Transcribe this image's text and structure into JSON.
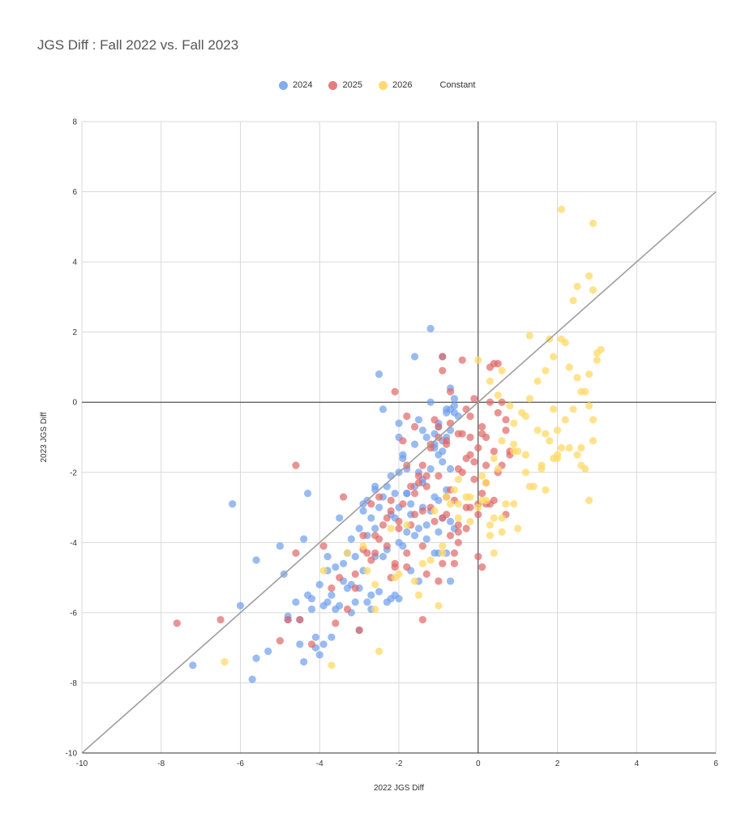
{
  "chart_data": {
    "type": "scatter",
    "title": "JGS Diff : Fall 2022 vs. Fall 2023",
    "xlabel": "2022 JGS Diff",
    "ylabel": "2023 JGS Diff",
    "xlim": [
      -10,
      6
    ],
    "ylim": [
      -10,
      8
    ],
    "xticks": [
      "-10",
      "-8",
      "-6",
      "-4",
      "-2",
      "0",
      "2",
      "4",
      "6"
    ],
    "yticks": [
      "-10",
      "-8",
      "-6",
      "-4",
      "-2",
      "0",
      "2",
      "4",
      "6",
      "8"
    ],
    "grid": true,
    "legend_position": "top",
    "series": [
      {
        "name": "2024",
        "color": "#6d9eeb",
        "x": [
          -7.2,
          -6.2,
          -6.0,
          -5.7,
          -5.6,
          -5.6,
          -5.3,
          -5.0,
          -4.9,
          -4.8,
          -4.6,
          -4.5,
          -4.5,
          -4.4,
          -4.3,
          -4.2,
          -4.2,
          -4.1,
          -4.0,
          -3.9,
          -3.8,
          -3.8,
          -3.7,
          -3.6,
          -3.5,
          -3.4,
          -3.3,
          -3.2,
          -3.1,
          -3.0,
          -2.9,
          -2.8,
          -2.7,
          -2.6,
          -2.6,
          -2.5,
          -2.4,
          -2.3,
          -2.2,
          -2.1,
          -2.0,
          -2.0,
          -1.9,
          -1.8,
          -1.8,
          -1.7,
          -1.6,
          -1.5,
          -1.4,
          -1.3,
          -1.2,
          -1.1,
          -1.0,
          -0.9,
          -0.8,
          -0.7,
          -0.6,
          -1.2,
          -0.9,
          -0.7,
          -2.5,
          -1.6,
          -1.0,
          -0.8,
          -0.6,
          -1.4,
          -1.1,
          -0.9,
          -0.7,
          -0.5,
          -2.0,
          -1.7,
          -1.3,
          -1.0,
          -0.8,
          -3.0,
          -2.8,
          -2.3,
          -1.9,
          -1.5,
          -1.2,
          -1.0,
          -0.7,
          -3.2,
          -2.6,
          -2.1,
          -1.8,
          -1.4,
          -1.1,
          -0.9,
          -0.6,
          -3.8,
          -3.4,
          -2.9,
          -2.4,
          -2.0,
          -1.6,
          -1.3,
          -1.0,
          -3.5,
          -3.0,
          -2.7,
          -2.2,
          -1.7,
          -4.0,
          -3.6,
          -3.1,
          -2.5,
          -2.0,
          -1.5,
          -1.1,
          -0.7,
          -4.3,
          -3.9,
          -3.3,
          -2.8,
          -2.3,
          -4.8,
          -4.4,
          -4.1,
          -3.7,
          -3.2,
          -2.7,
          -2.1,
          -2.4,
          -2.0,
          -1.9,
          -1.6,
          -1.5,
          -1.2,
          -1.0,
          -0.8,
          -0.6,
          -2.9,
          -2.6,
          -2.2,
          -1.8,
          -1.4,
          -1.1,
          -0.9,
          -0.8,
          -0.7
        ],
        "y": [
          -7.5,
          -2.9,
          -5.8,
          -7.9,
          -7.3,
          -4.5,
          -7.1,
          -4.1,
          -4.9,
          -6.1,
          -5.7,
          -6.9,
          -6.2,
          -3.9,
          -2.6,
          -5.9,
          -5.6,
          -6.7,
          -7.2,
          -6.9,
          -5.7,
          -4.8,
          -5.5,
          -4.7,
          -3.3,
          -5.1,
          -4.3,
          -5.2,
          -4.4,
          -5.3,
          -3.1,
          -2.8,
          -3.3,
          -2.4,
          -4.4,
          -3.0,
          -2.7,
          -2.4,
          -3.2,
          -2.6,
          -2.0,
          -1.0,
          -1.5,
          -1.9,
          -2.6,
          -2.9,
          -2.4,
          -2.0,
          -2.3,
          -1.0,
          -1.9,
          -0.9,
          -1.5,
          -1.1,
          -2.5,
          -0.8,
          0.1,
          2.1,
          1.3,
          0.4,
          0.8,
          1.3,
          -0.6,
          -0.3,
          -0.1,
          -0.8,
          -1.2,
          -1.7,
          -1.9,
          -0.4,
          -3.0,
          -3.2,
          -3.5,
          -3.7,
          -4.3,
          -3.6,
          -3.8,
          -4.2,
          -4.1,
          -3.6,
          -3.1,
          -2.8,
          -3.4,
          -3.9,
          -3.6,
          -3.3,
          -3.7,
          -3.0,
          -2.7,
          -3.3,
          -3.6,
          -4.4,
          -4.6,
          -4.8,
          -4.4,
          -4.0,
          -3.8,
          -3.9,
          -4.3,
          -5.8,
          -6.5,
          -5.5,
          -5.6,
          -4.8,
          -5.2,
          -5.9,
          -5.7,
          -5.4,
          -5.6,
          -5.1,
          -4.3,
          -5.1,
          -5.5,
          -5.8,
          -5.3,
          -5.7,
          -5.7,
          -6.2,
          -7.4,
          -7.0,
          -6.7,
          -6.0,
          -5.9,
          -5.5,
          -0.2,
          -0.6,
          -1.6,
          -1.2,
          -0.5,
          0.0,
          -0.7,
          -0.2,
          -0.3,
          -2.9,
          -2.5,
          -2.1,
          -2.6,
          -2.2,
          -1.3,
          -1.4,
          -1.0,
          -0.2
        ]
      },
      {
        "name": "2025",
        "color": "#e06666",
        "x": [
          -7.6,
          -6.5,
          -5.0,
          -4.8,
          -4.6,
          -4.6,
          -4.5,
          -4.2,
          -3.9,
          -3.7,
          -3.6,
          -3.4,
          -3.3,
          -3.1,
          -3.0,
          -2.9,
          -2.8,
          -2.7,
          -2.6,
          -2.5,
          -2.4,
          -2.3,
          -2.2,
          -2.1,
          -2.0,
          -1.9,
          -1.8,
          -1.7,
          -1.6,
          -1.5,
          -1.4,
          -1.3,
          -1.2,
          -1.1,
          -1.0,
          -0.9,
          -0.8,
          -0.7,
          -0.6,
          -0.5,
          -0.4,
          -0.3,
          -0.2,
          -0.1,
          0.0,
          0.1,
          0.2,
          0.3,
          0.4,
          0.5,
          0.6,
          0.7,
          0.8,
          -0.9,
          -0.7,
          -0.4,
          -0.2,
          0.1,
          0.3,
          0.5,
          0.7,
          -1.0,
          -0.8,
          -0.5,
          -0.3,
          0.0,
          0.2,
          0.4,
          0.6,
          0.8,
          -1.8,
          -1.5,
          -1.3,
          -1.0,
          -0.7,
          -0.4,
          -0.1,
          0.2,
          0.5,
          -2.2,
          -1.9,
          -1.6,
          -1.2,
          -0.9,
          -0.6,
          -0.3,
          0.0,
          0.3,
          -2.6,
          -2.3,
          -2.0,
          -1.7,
          -1.4,
          -1.1,
          -0.8,
          -0.5,
          -0.2,
          0.1,
          0.4,
          0.7,
          -2.9,
          -2.5,
          -2.1,
          -1.8,
          -1.4,
          -1.0,
          -0.6,
          -0.3,
          0.0,
          -3.5,
          -3.1,
          -2.7,
          -2.2,
          -1.8,
          -1.3,
          -0.9,
          -0.5,
          -0.1,
          0.2,
          -1.4,
          -0.7,
          -0.2,
          0.1,
          -2.1,
          -1.6,
          -1.2,
          -0.8,
          -0.5
        ],
        "y": [
          -6.3,
          -6.2,
          -6.8,
          -6.2,
          -1.8,
          -4.3,
          -6.2,
          -6.9,
          -4.1,
          -5.3,
          -6.3,
          -2.7,
          -5.9,
          -4.9,
          -6.5,
          -3.8,
          -4.3,
          -2.9,
          -4.3,
          -2.7,
          -3.5,
          -4.1,
          -3.1,
          -4.7,
          -3.4,
          -1.1,
          -0.4,
          -2.4,
          -3.2,
          -2.3,
          -1.8,
          -2.1,
          -1.3,
          -0.5,
          -1.0,
          0.9,
          -1.2,
          -3.8,
          -4.6,
          -3.5,
          -0.9,
          -0.2,
          -1.0,
          0.1,
          -4.4,
          -4.7,
          -2.9,
          1.0,
          1.1,
          1.1,
          0.0,
          -0.8,
          -1.4,
          1.3,
          0.3,
          1.2,
          -0.4,
          -0.7,
          0.0,
          -0.3,
          -0.5,
          -0.7,
          -1.1,
          -0.9,
          -1.6,
          -1.3,
          -1.0,
          -1.4,
          -1.8,
          -1.5,
          -1.8,
          -2.1,
          -2.4,
          -2.1,
          -2.5,
          -2.0,
          -1.7,
          -2.3,
          -2.0,
          -2.8,
          -2.9,
          -2.6,
          -3.0,
          -3.3,
          -2.8,
          -3.0,
          -3.2,
          -2.9,
          -3.8,
          -3.3,
          -3.6,
          -3.5,
          -3.1,
          -3.4,
          -3.2,
          -3.7,
          -3.0,
          -2.6,
          -2.8,
          -3.2,
          -4.2,
          -3.9,
          -4.6,
          -4.7,
          -4.1,
          -5.1,
          -4.3,
          -3.6,
          -2.9,
          -5.0,
          -5.3,
          -4.5,
          -5.0,
          -4.3,
          -4.9,
          -4.6,
          -4.0,
          -2.2,
          -1.8,
          -6.2,
          -0.6,
          -1.5,
          -0.9,
          0.3,
          -0.7,
          -1.2,
          -2.7,
          -1.9
        ]
      },
      {
        "name": "2026",
        "color": "#ffd966",
        "x": [
          -6.4,
          -3.7,
          -2.5,
          -1.0,
          -1.5,
          -2.6,
          -2.0,
          -1.2,
          -0.9,
          -0.5,
          -0.2,
          0.1,
          0.4,
          0.6,
          0.9,
          1.1,
          1.3,
          1.5,
          1.7,
          1.9,
          2.1,
          2.3,
          2.5,
          2.7,
          2.9,
          3.0,
          3.1,
          2.1,
          2.9,
          2.8,
          2.5,
          2.4,
          2.9,
          2.2,
          1.8,
          1.3,
          0.6,
          0.3,
          0.0,
          0.5,
          0.8,
          1.2,
          1.5,
          1.8,
          2.0,
          2.2,
          2.4,
          2.6,
          2.8,
          3.0,
          2.6,
          2.0,
          1.6,
          1.2,
          0.9,
          0.5,
          0.2,
          -0.3,
          -0.6,
          0.2,
          0.4,
          0.7,
          1.0,
          1.3,
          1.6,
          1.9,
          2.3,
          2.7,
          2.9,
          0.0,
          -0.2,
          0.6,
          0.9,
          1.4,
          1.7,
          2.1,
          2.5,
          2.8,
          -1.1,
          -0.8,
          -0.5,
          0.1,
          0.3,
          0.9,
          1.7,
          2.6,
          -1.8,
          -2.2,
          -2.9,
          -3.3,
          -0.5,
          0.4,
          -1.4,
          -0.9,
          -3.9,
          -2.8,
          -2.6,
          -2.1,
          -1.6,
          1.0,
          1.9,
          2.8,
          -0.7,
          0.3,
          0.6,
          1.2,
          2.0
        ],
        "y": [
          -7.4,
          -7.5,
          -7.1,
          -5.8,
          -5.5,
          -5.9,
          -4.9,
          -4.5,
          -4.1,
          -3.3,
          -2.7,
          -2.1,
          -1.6,
          -1.1,
          -0.6,
          -0.3,
          0.1,
          0.6,
          0.9,
          1.3,
          1.8,
          1.0,
          0.7,
          0.3,
          -0.5,
          1.2,
          1.5,
          5.5,
          5.1,
          3.6,
          3.3,
          2.9,
          3.2,
          1.7,
          1.8,
          1.9,
          0.9,
          0.6,
          1.2,
          0.2,
          -0.1,
          -0.4,
          -0.8,
          -1.1,
          -0.8,
          -0.5,
          -0.2,
          0.3,
          0.8,
          1.4,
          -1.3,
          -1.6,
          -1.8,
          -1.5,
          -1.2,
          -1.9,
          -2.3,
          -2.7,
          -2.5,
          -2.8,
          -3.3,
          -2.9,
          -3.6,
          -2.4,
          -1.9,
          -1.6,
          -1.3,
          -1.9,
          -1.1,
          -3.0,
          -3.4,
          -3.7,
          -2.9,
          -2.4,
          -0.9,
          -1.3,
          -1.5,
          -2.8,
          -3.1,
          -2.7,
          -2.2,
          -2.8,
          -3.5,
          -1.4,
          -2.5,
          -1.8,
          -3.5,
          -3.6,
          -4.1,
          -4.3,
          -2.9,
          -4.3,
          -4.6,
          -4.3,
          -4.8,
          -4.8,
          -5.2,
          -5.0,
          -5.1,
          -1.4,
          -0.2,
          -0.1,
          -2.9,
          -3.8,
          -3.3,
          -2.0,
          -1.5
        ]
      }
    ],
    "trendline": {
      "name": "Constant",
      "color": "#9e9e9e",
      "x": [
        -10,
        6
      ],
      "y": [
        -10,
        6
      ]
    }
  }
}
